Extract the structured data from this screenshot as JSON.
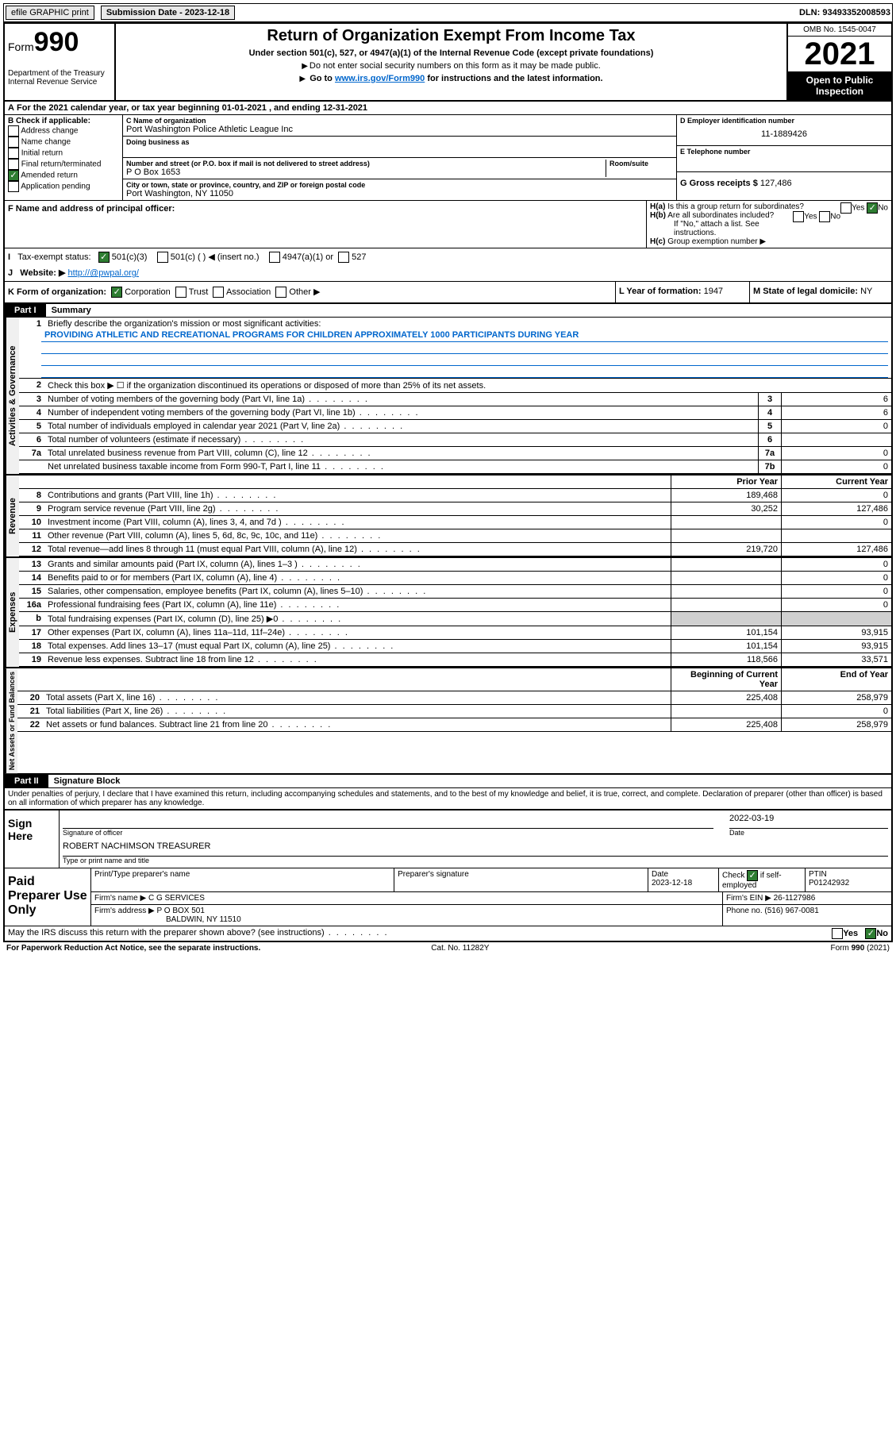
{
  "topbar": {
    "print_btn": "efile GRAPHIC print",
    "sub_date_label": "Submission Date - 2023-12-18",
    "dln": "DLN: 93493352008593"
  },
  "header": {
    "form_word": "Form",
    "form_no": "990",
    "dept": "Department of the Treasury Internal Revenue Service",
    "title": "Return of Organization Exempt From Income Tax",
    "sub1": "Under section 501(c), 527, or 4947(a)(1) of the Internal Revenue Code (except private foundations)",
    "sub2": "Do not enter social security numbers on this form as it may be made public.",
    "sub3_pre": "Go to ",
    "sub3_link": "www.irs.gov/Form990",
    "sub3_post": " for instructions and the latest information.",
    "omb": "OMB No. 1545-0047",
    "year": "2021",
    "open": "Open to Public Inspection"
  },
  "A": {
    "line": "For the 2021 calendar year, or tax year beginning 01-01-2021   , and ending 12-31-2021"
  },
  "B": {
    "label": "B Check if applicable:",
    "opts": [
      "Address change",
      "Name change",
      "Initial return",
      "Final return/terminated",
      "Amended return",
      "Application pending"
    ],
    "checked_idx": 4
  },
  "C": {
    "name_label": "C Name of organization",
    "name": "Port Washington Police Athletic League Inc",
    "dba_label": "Doing business as",
    "addr_label": "Number and street (or P.O. box if mail is not delivered to street address)",
    "room_label": "Room/suite",
    "addr": "P O Box 1653",
    "city_label": "City or town, state or province, country, and ZIP or foreign postal code",
    "city": "Port Washington, NY  11050"
  },
  "D": {
    "label": "D Employer identification number",
    "val": "11-1889426"
  },
  "E": {
    "label": "E Telephone number",
    "val": ""
  },
  "G": {
    "label": "G Gross receipts $",
    "val": "127,486"
  },
  "F": {
    "label": "F  Name and address of principal officer:"
  },
  "H": {
    "a": "Is this a group return for subordinates?",
    "b": "Are all subordinates included?",
    "b_note": "If \"No,\" attach a list. See instructions.",
    "c": "Group exemption number ▶",
    "yes": "Yes",
    "no": "No"
  },
  "I": {
    "label": "Tax-exempt status:",
    "o1": "501(c)(3)",
    "o2": "501(c) (   ) ◀ (insert no.)",
    "o3": "4947(a)(1) or",
    "o4": "527"
  },
  "J": {
    "label": "Website: ▶",
    "val": "http://@pwpal.org/"
  },
  "K": {
    "label": "K Form of organization:",
    "o1": "Corporation",
    "o2": "Trust",
    "o3": "Association",
    "o4": "Other ▶"
  },
  "L": {
    "label": "L Year of formation:",
    "val": "1947"
  },
  "M": {
    "label": "M State of legal domicile:",
    "val": "NY"
  },
  "part1": {
    "header": "Part I",
    "title": "Summary",
    "q1_label": "Briefly describe the organization's mission or most significant activities:",
    "q1_val": "PROVIDING ATHLETIC AND RECREATIONAL PROGRAMS FOR CHILDREN APPROXIMATELY 1000 PARTICIPANTS DURING YEAR",
    "q2": "Check this box ▶ ☐  if the organization discontinued its operations or disposed of more than 25% of its net assets.",
    "lines_gov": [
      {
        "n": "3",
        "d": "Number of voting members of the governing body (Part VI, line 1a)",
        "box": "3",
        "v": "6"
      },
      {
        "n": "4",
        "d": "Number of independent voting members of the governing body (Part VI, line 1b)",
        "box": "4",
        "v": "6"
      },
      {
        "n": "5",
        "d": "Total number of individuals employed in calendar year 2021 (Part V, line 2a)",
        "box": "5",
        "v": "0"
      },
      {
        "n": "6",
        "d": "Total number of volunteers (estimate if necessary)",
        "box": "6",
        "v": ""
      },
      {
        "n": "7a",
        "d": "Total unrelated business revenue from Part VIII, column (C), line 12",
        "box": "7a",
        "v": "0"
      },
      {
        "n": "",
        "d": "Net unrelated business taxable income from Form 990-T, Part I, line 11",
        "box": "7b",
        "v": "0"
      }
    ],
    "col_prior": "Prior Year",
    "col_current": "Current Year",
    "col_begin": "Beginning of Current Year",
    "col_end": "End of Year",
    "rev": [
      {
        "n": "8",
        "d": "Contributions and grants (Part VIII, line 1h)",
        "p": "189,468",
        "c": "0"
      },
      {
        "n": "9",
        "d": "Program service revenue (Part VIII, line 2g)",
        "p": "30,252",
        "c": "127,486"
      },
      {
        "n": "10",
        "d": "Investment income (Part VIII, column (A), lines 3, 4, and 7d )",
        "p": "",
        "c": "0"
      },
      {
        "n": "11",
        "d": "Other revenue (Part VIII, column (A), lines 5, 6d, 8c, 9c, 10c, and 11e)",
        "p": "",
        "c": ""
      },
      {
        "n": "12",
        "d": "Total revenue—add lines 8 through 11 (must equal Part VIII, column (A), line 12)",
        "p": "219,720",
        "c": "127,486"
      }
    ],
    "exp": [
      {
        "n": "13",
        "d": "Grants and similar amounts paid (Part IX, column (A), lines 1–3 )",
        "p": "",
        "c": "0"
      },
      {
        "n": "14",
        "d": "Benefits paid to or for members (Part IX, column (A), line 4)",
        "p": "",
        "c": "0"
      },
      {
        "n": "15",
        "d": "Salaries, other compensation, employee benefits (Part IX, column (A), lines 5–10)",
        "p": "",
        "c": "0"
      },
      {
        "n": "16a",
        "d": "Professional fundraising fees (Part IX, column (A), line 11e)",
        "p": "",
        "c": "0"
      },
      {
        "n": "b",
        "d": "Total fundraising expenses (Part IX, column (D), line 25) ▶0",
        "p": "shade",
        "c": "shade"
      },
      {
        "n": "17",
        "d": "Other expenses (Part IX, column (A), lines 11a–11d, 11f–24e)",
        "p": "101,154",
        "c": "93,915"
      },
      {
        "n": "18",
        "d": "Total expenses. Add lines 13–17 (must equal Part IX, column (A), line 25)",
        "p": "101,154",
        "c": "93,915"
      },
      {
        "n": "19",
        "d": "Revenue less expenses. Subtract line 18 from line 12",
        "p": "118,566",
        "c": "33,571"
      }
    ],
    "net": [
      {
        "n": "20",
        "d": "Total assets (Part X, line 16)",
        "p": "225,408",
        "c": "258,979"
      },
      {
        "n": "21",
        "d": "Total liabilities (Part X, line 26)",
        "p": "",
        "c": "0"
      },
      {
        "n": "22",
        "d": "Net assets or fund balances. Subtract line 21 from line 20",
        "p": "225,408",
        "c": "258,979"
      }
    ],
    "vlab_gov": "Activities & Governance",
    "vlab_rev": "Revenue",
    "vlab_exp": "Expenses",
    "vlab_net": "Net Assets or Fund Balances"
  },
  "part2": {
    "header": "Part II",
    "title": "Signature Block",
    "decl": "Under penalties of perjury, I declare that I have examined this return, including accompanying schedules and statements, and to the best of my knowledge and belief, it is true, correct, and complete. Declaration of preparer (other than officer) is based on all information of which preparer has any knowledge.",
    "sign_here": "Sign Here",
    "sig_officer": "Signature of officer",
    "date_label": "Date",
    "sig_date": "2022-03-19",
    "name_title": "ROBERT NACHIMSON TREASURER",
    "type_label": "Type or print name and title",
    "paid": "Paid Preparer Use Only",
    "pt_name_label": "Print/Type preparer's name",
    "prep_sig_label": "Preparer's signature",
    "prep_date_label": "Date",
    "prep_date": "2023-12-18",
    "check_self": "Check ☑ if self-employed",
    "ptin_label": "PTIN",
    "ptin": "P01242932",
    "firm_name_label": "Firm's name   ▶",
    "firm_name": "C G SERVICES",
    "firm_ein_label": "Firm's EIN ▶",
    "firm_ein": "26-1127986",
    "firm_addr_label": "Firm's address ▶",
    "firm_addr1": "P O BOX 501",
    "firm_addr2": "BALDWIN, NY  11510",
    "phone_label": "Phone no.",
    "phone": "(516) 967-0081",
    "may_irs": "May the IRS discuss this return with the preparer shown above? (see instructions)"
  },
  "footer": {
    "left": "For Paperwork Reduction Act Notice, see the separate instructions.",
    "mid": "Cat. No. 11282Y",
    "right": "Form 990 (2021)"
  }
}
